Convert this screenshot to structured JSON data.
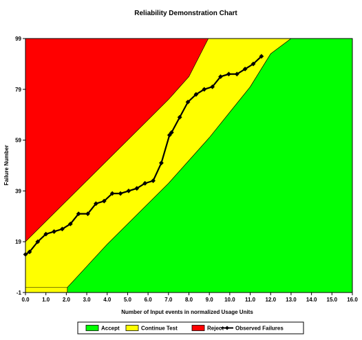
{
  "chart_data": {
    "type": "line",
    "title": "Reliability Demonstration Chart",
    "xlabel": "Number of Input events in normalized Usage Units",
    "ylabel": "Failure Number",
    "xlim": [
      0,
      16
    ],
    "ylim": [
      -1,
      99
    ],
    "x_ticks": [
      "0.0",
      "1.0",
      "2.0",
      "3.0",
      "4.0",
      "5.0",
      "6.0",
      "7.0",
      "8.0",
      "9.0",
      "10.0",
      "11.0",
      "12.0",
      "13.0",
      "14.0",
      "15.0",
      "16.0"
    ],
    "y_ticks": [
      "-1",
      "19",
      "39",
      "59",
      "79",
      "99"
    ],
    "grid": false,
    "legend_position": "bottom",
    "regions": [
      {
        "name": "Accept",
        "color": "#00ff00",
        "boundary_x": [
          2.05,
          4.0,
          5.0,
          6.0,
          7.0,
          8.0,
          9.0,
          10.0,
          11.0,
          12.0,
          13.0
        ],
        "boundary_y": [
          1,
          18,
          26,
          34,
          42,
          51,
          60,
          70,
          80,
          93,
          99
        ]
      },
      {
        "name": "Continue Test",
        "color": "#ffff00"
      },
      {
        "name": "Reject",
        "color": "#ff0000",
        "boundary_x": [
          0.0,
          1.0,
          2.0,
          3.0,
          4.0,
          5.0,
          6.0,
          7.0,
          8.0,
          8.95
        ],
        "boundary_y": [
          19,
          27,
          35,
          43,
          51,
          59,
          67,
          75,
          84,
          99
        ]
      }
    ],
    "series": [
      {
        "name": "Observed Failures",
        "color": "#000000",
        "x": [
          0.0,
          0.2,
          0.6,
          1.0,
          1.4,
          1.8,
          2.2,
          2.6,
          3.05,
          3.45,
          3.85,
          4.25,
          4.65,
          5.05,
          5.45,
          5.85,
          6.25,
          6.65,
          7.05,
          7.15,
          7.55,
          7.95,
          8.35,
          8.75,
          9.15,
          9.55,
          9.95,
          10.35,
          10.75,
          11.15,
          11.55
        ],
        "y": [
          14,
          15,
          19,
          22,
          23,
          24,
          26,
          30,
          30,
          34,
          35,
          38,
          38,
          39,
          40,
          42,
          43,
          50,
          61,
          62,
          68,
          74,
          77,
          79,
          80,
          84,
          85,
          85,
          87,
          89,
          92
        ]
      }
    ]
  }
}
